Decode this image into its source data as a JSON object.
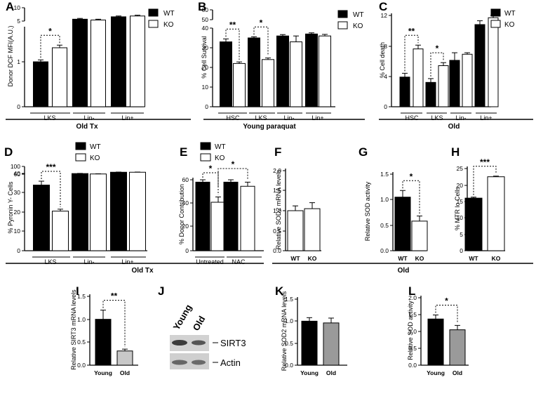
{
  "legend": {
    "wt": "WT",
    "ko": "KO",
    "wt_color": "#000000",
    "ko_color": "#ffffff"
  },
  "sections": {
    "old_tx_top": "Old Tx",
    "young_paraquat": "Young paraquat",
    "old_top": "Old",
    "old_tx_mid": "Old Tx",
    "old_mid": "Old"
  },
  "chart_data": [
    {
      "id": "A",
      "panel_label": "A",
      "type": "bar",
      "ylabel": "Donor DCF MFI(A.U.)",
      "groups": [
        "LKS",
        "Lin-",
        "Lin+"
      ],
      "series": [
        {
          "name": "WT",
          "values": [
            1.0,
            5.7,
            6.6
          ],
          "errors": [
            0.22,
            0.3,
            0.3
          ]
        },
        {
          "name": "KO",
          "values": [
            2.6,
            5.4,
            6.9
          ],
          "errors": [
            0.3,
            0.3,
            0.3
          ]
        }
      ],
      "yticks": [
        "0",
        "1",
        "5",
        "10"
      ],
      "significance": [
        {
          "group": "LKS",
          "label": "*"
        }
      ]
    },
    {
      "id": "B",
      "panel_label": "B",
      "type": "bar",
      "ylabel": "% Cell Survival",
      "groups": [
        "HSC",
        "LKS",
        "Lin-",
        "Lin+"
      ],
      "series": [
        {
          "name": "WT",
          "values": [
            33,
            35,
            36,
            37
          ],
          "errors": [
            1.5,
            0.6,
            0.7,
            0.6
          ]
        },
        {
          "name": "KO",
          "values": [
            22,
            24,
            33,
            36
          ],
          "errors": [
            0.8,
            0.8,
            3.0,
            0.8
          ]
        }
      ],
      "yticks": [
        "0",
        "10",
        "20",
        "30",
        "40",
        "50",
        "60"
      ],
      "significance": [
        {
          "group": "HSC",
          "label": "**"
        },
        {
          "group": "LKS",
          "label": "*"
        }
      ]
    },
    {
      "id": "C",
      "panel_label": "C",
      "type": "bar",
      "ylabel": "% Cell death",
      "groups": [
        "HSC",
        "LKS",
        "Lin-",
        "Lin+"
      ],
      "series": [
        {
          "name": "WT",
          "values": [
            3.9,
            3.2,
            6.1,
            10.8
          ],
          "errors": [
            0.5,
            0.5,
            1.0,
            0.5
          ]
        },
        {
          "name": "KO",
          "values": [
            7.6,
            5.4,
            6.9,
            11.7
          ],
          "errors": [
            0.5,
            0.4,
            0.2,
            0.5
          ]
        }
      ],
      "yticks": [
        "0",
        "4",
        "8",
        "12"
      ],
      "ylim": [
        0,
        12
      ],
      "significance": [
        {
          "group": "HSC",
          "label": "**"
        },
        {
          "group": "LKS",
          "label": "*"
        }
      ]
    },
    {
      "id": "D",
      "panel_label": "D",
      "type": "bar",
      "ylabel": "% Pyronin Y- Cells",
      "groups": [
        "LKS",
        "Lin-",
        "Lin+"
      ],
      "series": [
        {
          "name": "WT",
          "values": [
            34,
            63,
            70
          ],
          "errors": [
            2.0,
            1,
            1
          ]
        },
        {
          "name": "KO",
          "values": [
            20.5,
            61,
            70
          ],
          "errors": [
            1.0,
            1,
            1
          ]
        }
      ],
      "yticks": [
        "0",
        "10",
        "20",
        "30",
        "40",
        "60",
        "100"
      ],
      "significance": [
        {
          "group": "LKS",
          "label": "***"
        }
      ]
    },
    {
      "id": "E",
      "panel_label": "E",
      "type": "bar",
      "ylabel": "% Donor Contribution",
      "groups": [
        "Untreated",
        "NAC"
      ],
      "series": [
        {
          "name": "WT",
          "values": [
            58,
            58
          ],
          "errors": [
            4,
            3.5
          ]
        },
        {
          "name": "KO",
          "values": [
            41,
            54.5
          ],
          "errors": [
            4.5,
            3.5
          ]
        }
      ],
      "yticks": [
        "0",
        "20",
        "40",
        "60"
      ],
      "ylim": [
        0,
        60
      ],
      "significance": [
        {
          "label": "*"
        },
        {
          "label": "*"
        }
      ]
    },
    {
      "id": "F",
      "panel_label": "F",
      "type": "bar",
      "ylabel": "Relative SOD2 mRNA levels",
      "categories": [
        "WT",
        "KO"
      ],
      "values": [
        1.0,
        1.05
      ],
      "errors": [
        0.12,
        0.15
      ],
      "colors": [
        "#ffffff",
        "#ffffff"
      ],
      "yticks": [
        "0.0",
        "0.5",
        "1.0",
        "1.5",
        "2.0"
      ],
      "ylim": [
        0,
        2.0
      ]
    },
    {
      "id": "G",
      "panel_label": "G",
      "type": "bar",
      "ylabel": "Relative SOD activity",
      "categories": [
        "WT",
        "KO"
      ],
      "values": [
        1.05,
        0.58
      ],
      "errors": [
        0.13,
        0.1
      ],
      "colors": [
        "#000000",
        "#ffffff"
      ],
      "yticks": [
        "0.0",
        "0.5",
        "1.0",
        "1.5"
      ],
      "ylim": [
        0,
        1.5
      ],
      "significance": [
        {
          "label": "*"
        }
      ]
    },
    {
      "id": "H",
      "panel_label": "H",
      "type": "bar",
      "ylabel": "% MTR lo Cells",
      "categories": [
        "WT",
        "KO"
      ],
      "values": [
        16,
        22.5
      ],
      "errors": [
        0.3,
        0.2
      ],
      "colors": [
        "#000000",
        "#ffffff"
      ],
      "yticks": [
        "0",
        "5",
        "10",
        "15",
        "20",
        "25"
      ],
      "ylim": [
        0,
        25
      ],
      "significance": [
        {
          "label": "***"
        }
      ]
    },
    {
      "id": "I",
      "panel_label": "I",
      "type": "bar",
      "ylabel": "Relative SIRT3 mRNA levels",
      "categories": [
        "Young",
        "Old"
      ],
      "values": [
        1.0,
        0.31
      ],
      "errors": [
        0.2,
        0.04
      ],
      "colors": [
        "#000000",
        "#c8c8c8"
      ],
      "yticks": [
        "0.0",
        "0.5",
        "1.0",
        "1.5"
      ],
      "ylim": [
        0,
        1.5
      ],
      "significance": [
        {
          "label": "**"
        }
      ]
    },
    {
      "id": "K",
      "panel_label": "K",
      "type": "bar",
      "ylabel": "Relative SOD2 mRNA levels",
      "categories": [
        "Young",
        "Old"
      ],
      "values": [
        1.0,
        0.96
      ],
      "errors": [
        0.08,
        0.11
      ],
      "colors": [
        "#000000",
        "#9a9a9a"
      ],
      "yticks": [
        "0.0",
        "0.5",
        "1.0",
        "1.5"
      ],
      "ylim": [
        0,
        1.5
      ]
    },
    {
      "id": "L",
      "panel_label": "L",
      "type": "bar",
      "ylabel": "Relative SOD activity",
      "categories": [
        "Young",
        "Old"
      ],
      "values": [
        1.37,
        1.05
      ],
      "errors": [
        0.12,
        0.13
      ],
      "colors": [
        "#000000",
        "#9a9a9a"
      ],
      "yticks": [
        "0.0",
        "0.5",
        "1.0",
        "1.5",
        "2.0"
      ],
      "ylim": [
        0,
        2.0
      ],
      "significance": [
        {
          "label": "*"
        }
      ]
    }
  ],
  "blot": {
    "panel_label": "J",
    "lanes": [
      "Young",
      "Old"
    ],
    "bands": [
      "SIRT3",
      "Actin"
    ]
  }
}
